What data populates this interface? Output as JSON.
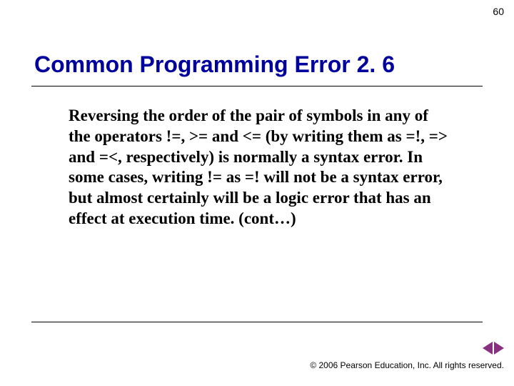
{
  "page_number": "60",
  "title": "Common Programming Error 2. 6",
  "body": "Reversing the order of the pair of symbols in any of the operators !=, >= and <= (by writing them as =!, => and =<, respectively) is normally a syntax error. In some cases, writing != as =! will not be a syntax error, but almost certainly will be a logic error that has an effect at execution time. (cont…)",
  "footer": "© 2006 Pearson Education, Inc.  All rights reserved.",
  "colors": {
    "title_color": "#00009c",
    "arrow_color": "#8a3080",
    "text_color": "#000000",
    "background": "#ffffff"
  },
  "typography": {
    "title_font": "Arial",
    "title_size_pt": 24,
    "body_font": "Times New Roman",
    "body_size_pt": 17,
    "body_weight": "bold"
  }
}
